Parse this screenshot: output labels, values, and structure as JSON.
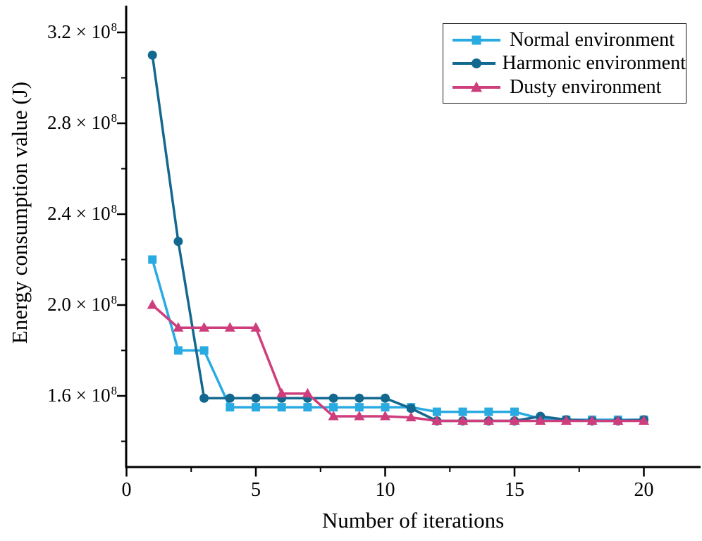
{
  "chart_data": {
    "type": "line",
    "title": "",
    "xlabel": "Number of iterations",
    "ylabel": "Energy consumption value (J)",
    "value_unit": "x10^8 J",
    "grid": false,
    "legend_position": "top-right",
    "x_range": [
      0,
      22.2
    ],
    "y_range": [
      1.28,
      3.32
    ],
    "x": [
      1,
      2,
      3,
      4,
      5,
      6,
      7,
      8,
      9,
      10,
      11,
      12,
      13,
      14,
      15,
      16,
      17,
      18,
      19,
      20
    ],
    "series": [
      {
        "name": "Normal environment",
        "color": "#29ABE2",
        "marker": "square",
        "values": [
          2.2,
          1.8,
          1.8,
          1.55,
          1.55,
          1.55,
          1.55,
          1.55,
          1.55,
          1.55,
          1.55,
          1.53,
          1.53,
          1.53,
          1.53,
          1.5,
          1.495,
          1.495,
          1.495,
          1.495
        ]
      },
      {
        "name": "Harmonic environment",
        "color": "#12688E",
        "marker": "circle",
        "values": [
          3.1,
          2.28,
          1.59,
          1.59,
          1.59,
          1.59,
          1.59,
          1.59,
          1.59,
          1.59,
          1.545,
          1.49,
          1.49,
          1.49,
          1.49,
          1.51,
          1.495,
          1.49,
          1.49,
          1.495
        ]
      },
      {
        "name": "Dusty environment",
        "color": "#CE3E7C",
        "marker": "triangle",
        "values": [
          2.0,
          1.9,
          1.9,
          1.9,
          1.9,
          1.61,
          1.61,
          1.51,
          1.51,
          1.51,
          1.505,
          1.49,
          1.49,
          1.49,
          1.49,
          1.49,
          1.49,
          1.49,
          1.49,
          1.49
        ]
      }
    ],
    "y_ticks": [
      {
        "value": 3.2,
        "base": "3.2 × 10",
        "exp": "8"
      },
      {
        "value": 2.8,
        "base": "2.8 × 10",
        "exp": "8"
      },
      {
        "value": 2.4,
        "base": "2.4 × 10",
        "exp": "8"
      },
      {
        "value": 2.0,
        "base": "2.0 × 10",
        "exp": "8"
      },
      {
        "value": 1.6,
        "base": "1.6 × 10",
        "exp": "8"
      }
    ],
    "y_minor_ticks": [
      1.4,
      1.8,
      2.2,
      2.6,
      3.0
    ],
    "x_ticks": [
      {
        "value": 0,
        "label": "0"
      },
      {
        "value": 5,
        "label": "5"
      },
      {
        "value": 10,
        "label": "10"
      },
      {
        "value": 15,
        "label": "15"
      },
      {
        "value": 20,
        "label": "20"
      }
    ],
    "x_minor_ticks": [
      2.5,
      7.5,
      12.5,
      17.5
    ]
  }
}
